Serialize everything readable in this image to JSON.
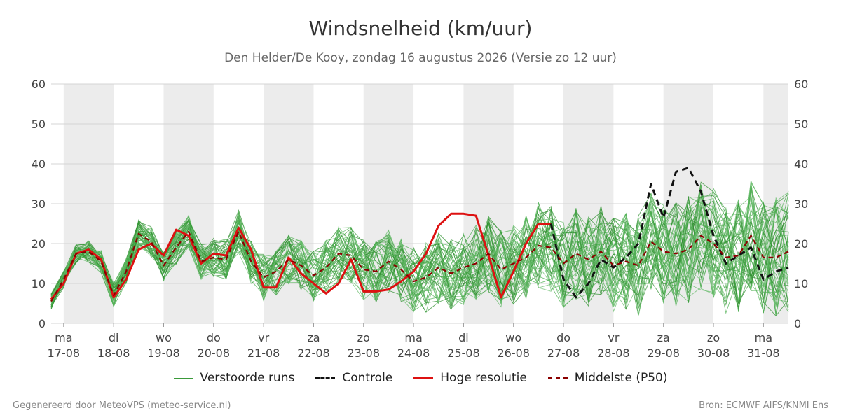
{
  "chart_data": {
    "type": "line",
    "title": "Windsnelheid (km/uur)",
    "subtitle": "Den Helder/De Kooy, zondag 16 augustus 2026 (Versie zo 12 uur)",
    "ylim": [
      0,
      60
    ],
    "yticks": [
      0,
      10,
      20,
      30,
      40,
      50,
      60
    ],
    "x_start_label": "17-08",
    "x_ticks": [
      {
        "day": "ma",
        "date": "17-08"
      },
      {
        "day": "di",
        "date": "18-08"
      },
      {
        "day": "wo",
        "date": "19-08"
      },
      {
        "day": "do",
        "date": "20-08"
      },
      {
        "day": "vr",
        "date": "21-08"
      },
      {
        "day": "za",
        "date": "22-08"
      },
      {
        "day": "zo",
        "date": "23-08"
      },
      {
        "day": "ma",
        "date": "24-08"
      },
      {
        "day": "di",
        "date": "25-08"
      },
      {
        "day": "wo",
        "date": "26-08"
      },
      {
        "day": "do",
        "date": "27-08"
      },
      {
        "day": "vr",
        "date": "28-08"
      },
      {
        "day": "za",
        "date": "29-08"
      },
      {
        "day": "zo",
        "date": "30-08"
      },
      {
        "day": "ma",
        "date": "31-08"
      }
    ],
    "x_range_days": [
      -0.25,
      14.5
    ],
    "grid": true,
    "legend_position": "bottom",
    "legend": [
      "Verstoorde runs",
      "Controle",
      "Hoge resolutie",
      "Middelste (P50)"
    ],
    "colors": {
      "ensemble": "#3a9a3a",
      "control": "#111111",
      "hres": "#dd1111",
      "p50": "#8b0000",
      "night_band": "#ececec"
    },
    "series": [
      {
        "name": "Hoge resolutie",
        "style": "solid-red",
        "x": [
          -0.25,
          0,
          0.25,
          0.5,
          0.75,
          1.0,
          1.25,
          1.5,
          1.75,
          2.0,
          2.25,
          2.5,
          2.75,
          3.0,
          3.25,
          3.5,
          3.75,
          4.0,
          4.25,
          4.5,
          4.75,
          5.0,
          5.25,
          5.5,
          5.75,
          6.0,
          6.25,
          6.5,
          6.75,
          7.0,
          7.25,
          7.5,
          7.75,
          8.0,
          8.25,
          8.5,
          8.75,
          9.0,
          9.25,
          9.5,
          9.75
        ],
        "values": [
          6,
          10,
          17.5,
          18.5,
          16,
          6.5,
          11,
          18.5,
          20,
          17,
          23.5,
          22,
          15,
          17.5,
          17,
          24,
          18.5,
          9,
          9,
          16.5,
          12.5,
          10,
          7.5,
          10,
          16,
          8,
          8,
          8.5,
          10.5,
          13,
          17.5,
          24.5,
          27.5,
          27.5,
          27,
          17,
          6.5,
          13,
          20,
          25,
          25
        ]
      },
      {
        "name": "Controle",
        "style": "dashed-black",
        "x": [
          9.75,
          10.0,
          10.25,
          10.5,
          10.75,
          11.0,
          11.25,
          11.5,
          11.75,
          12.0,
          12.25,
          12.5,
          12.75,
          13.0,
          13.25,
          13.5,
          13.75,
          14.0,
          14.25,
          14.5
        ],
        "values": [
          25,
          11,
          6.5,
          10,
          16,
          14,
          16.5,
          20,
          35,
          26.5,
          38,
          39,
          33,
          22,
          15,
          17,
          19,
          11,
          13,
          14
        ]
      },
      {
        "name": "Middelste (P50)",
        "style": "dashed-darkred",
        "x": [
          -0.25,
          0,
          0.25,
          0.5,
          0.75,
          1.0,
          1.25,
          1.5,
          1.75,
          2.0,
          2.25,
          2.5,
          2.75,
          3.0,
          3.25,
          3.5,
          3.75,
          4.0,
          4.25,
          4.5,
          4.75,
          5.0,
          5.25,
          5.5,
          5.75,
          6.0,
          6.25,
          6.5,
          6.75,
          7.0,
          7.25,
          7.5,
          7.75,
          8.0,
          8.25,
          8.5,
          8.75,
          9.0,
          9.25,
          9.5,
          9.75,
          10.0,
          10.25,
          10.5,
          10.75,
          11.0,
          11.25,
          11.5,
          11.75,
          12.0,
          12.25,
          12.5,
          12.75,
          13.0,
          13.25,
          13.5,
          13.75,
          14.0,
          14.25,
          14.5
        ],
        "values": [
          5.5,
          11,
          17.5,
          18,
          15.5,
          7,
          13,
          22.5,
          20.5,
          14.5,
          19,
          23,
          15.5,
          16.5,
          16,
          23,
          15.5,
          11.5,
          13,
          16,
          14.5,
          12,
          14,
          17.5,
          17,
          13.5,
          13,
          15.5,
          13.5,
          10.5,
          11.5,
          14,
          12.5,
          14,
          15,
          17.5,
          13.5,
          15,
          16.5,
          19.5,
          19,
          15,
          17.5,
          16,
          18,
          14.5,
          15.5,
          14.5,
          20.5,
          18,
          17.5,
          18.5,
          22,
          20,
          16.5,
          17,
          22,
          16.5,
          16.5,
          18
        ]
      }
    ]
  },
  "footer": {
    "left": "Gegenereerd door MeteoVPS (meteo-service.nl)",
    "right": "Bron: ECMWF AIFS/KNMI Ens"
  }
}
